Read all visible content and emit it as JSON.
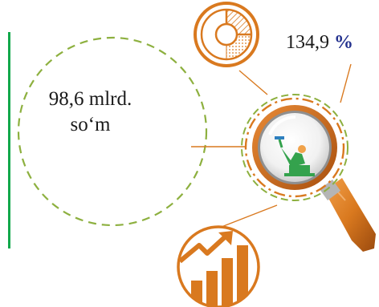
{
  "amount": {
    "line1": "98,6 mlrd.",
    "line2": "so‘m"
  },
  "growth": {
    "value": "134,9",
    "unit": "%"
  },
  "icons": {
    "pie": "pie-chart-icon",
    "worker": "worker-icon",
    "growth": "growth-chart-icon",
    "magnifier": "magnifier-icon"
  },
  "colors": {
    "accent_orange": "#d9791f",
    "accent_green": "#12a84c",
    "dash_green": "#8db03f",
    "worker_green": "#34a24d",
    "percent_blue": "#25338f"
  }
}
